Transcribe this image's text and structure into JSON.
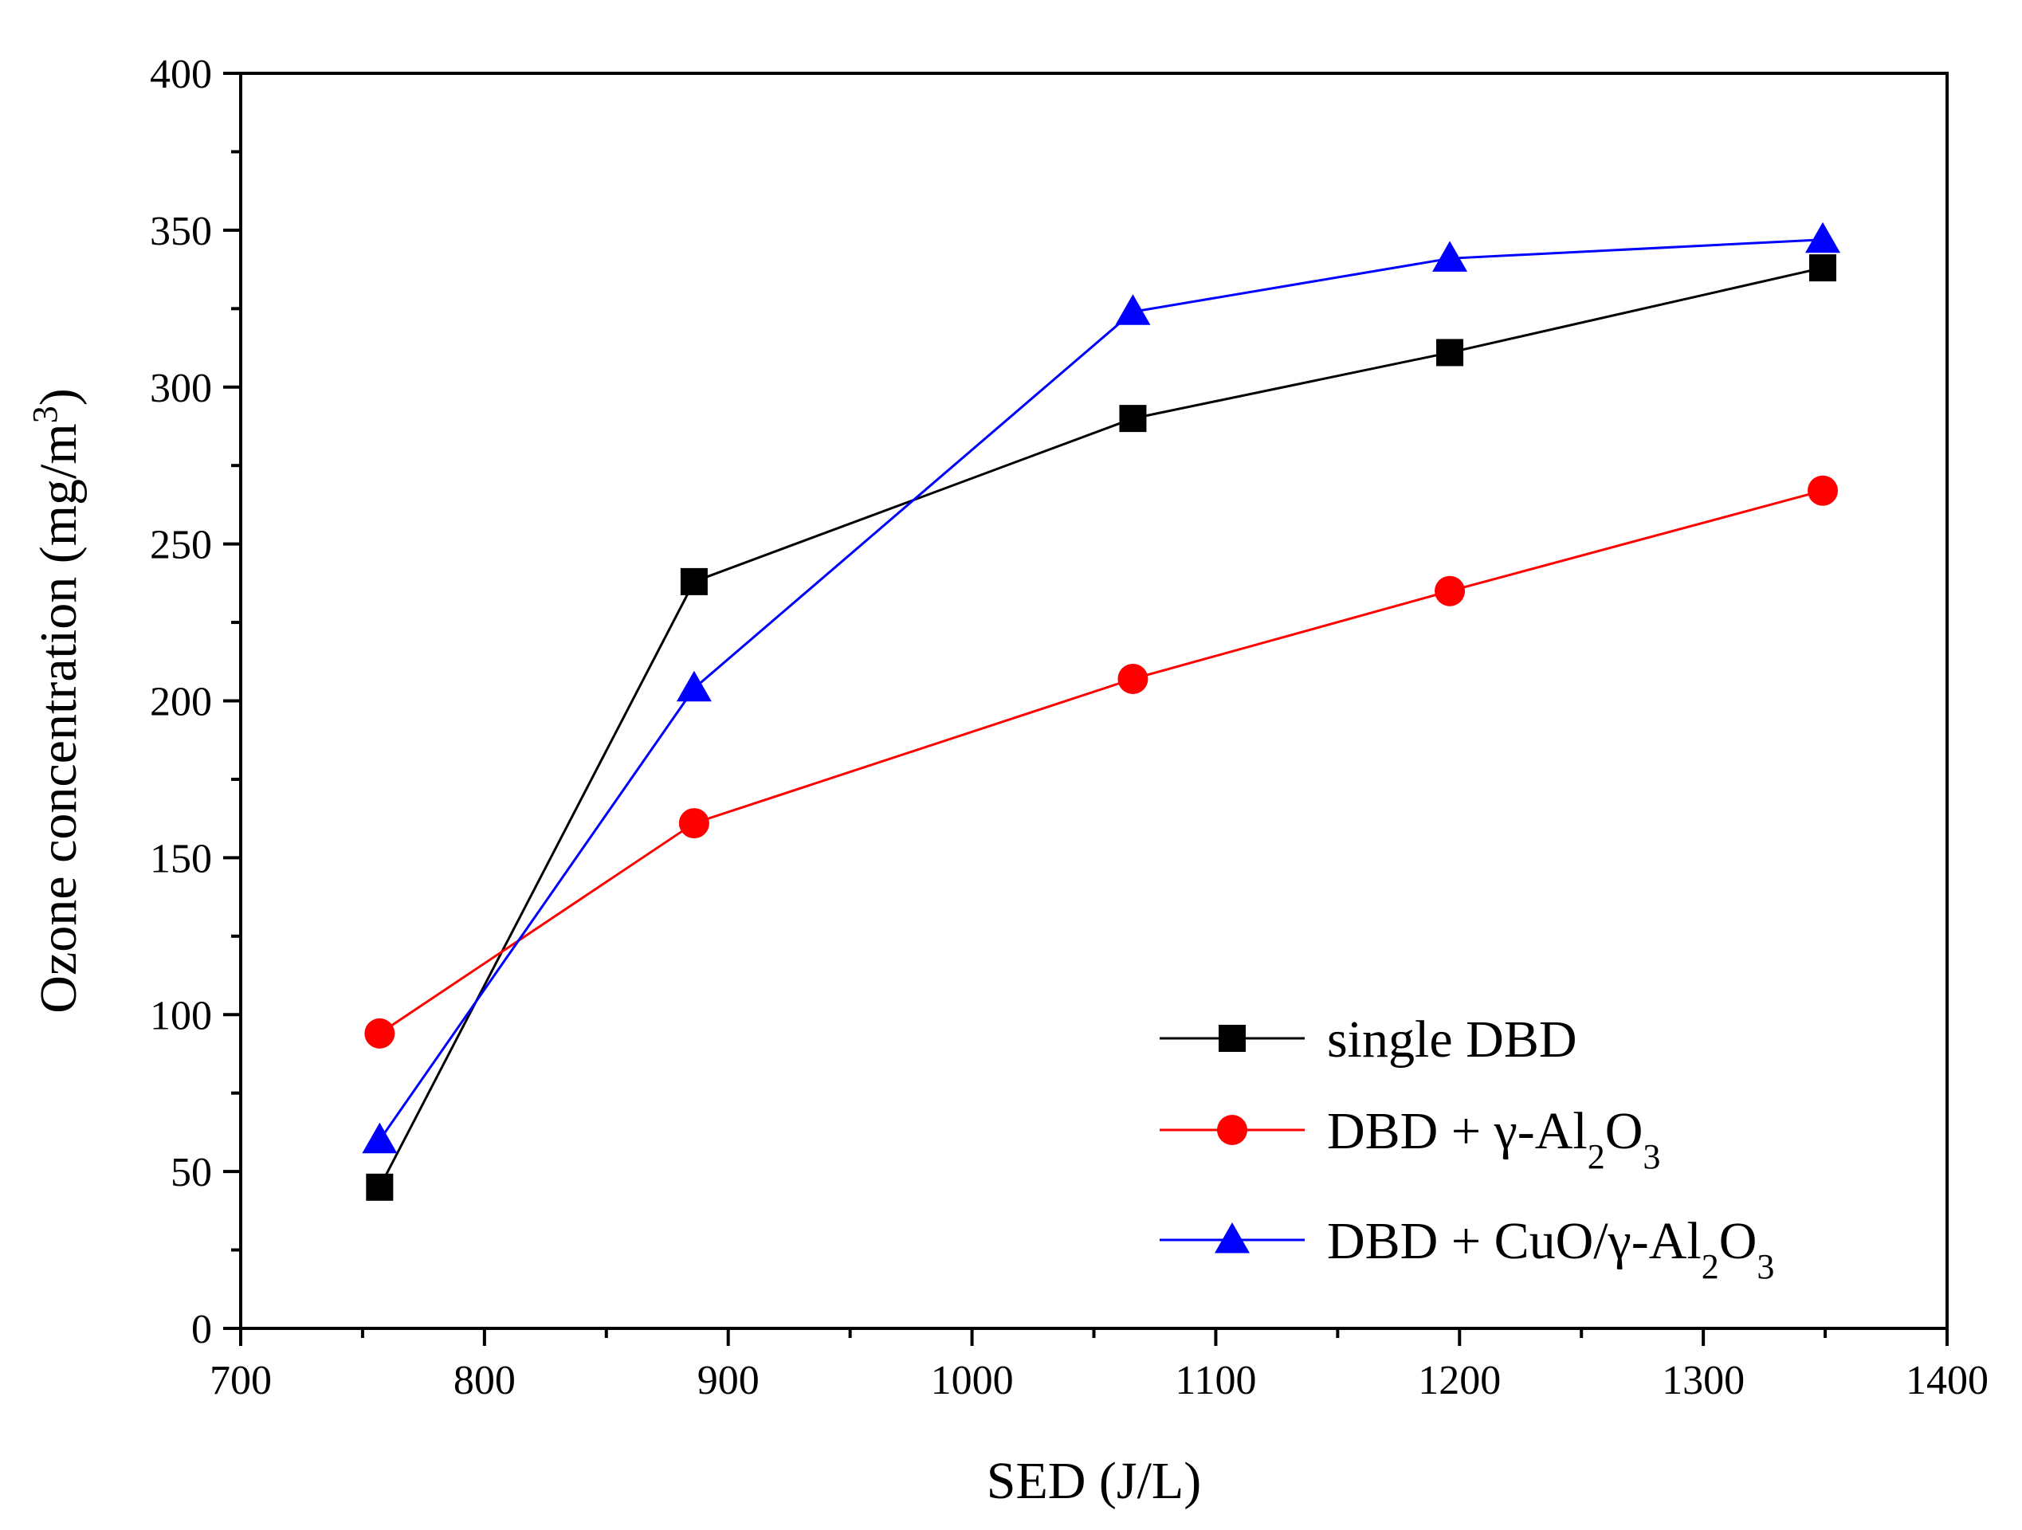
{
  "chart_data": {
    "type": "line",
    "title": "",
    "xlabel": "SED (J/L)",
    "ylabel_main": "Ozone concentration (mg/m",
    "ylabel_sup": "3",
    "ylabel_close": ")",
    "xlim": [
      700,
      1400
    ],
    "ylim": [
      0,
      400
    ],
    "xticks": [
      700,
      800,
      900,
      1000,
      1100,
      1200,
      1300,
      1400
    ],
    "yticks": [
      0,
      50,
      100,
      150,
      200,
      250,
      300,
      350,
      400
    ],
    "grid": false,
    "legend_position": "bottom-right",
    "series": [
      {
        "name": "single DBD",
        "legend_parts": [
          {
            "t": "single DBD",
            "sub": false
          }
        ],
        "color": "#000000",
        "marker": "square",
        "x": [
          757,
          886,
          1066,
          1196,
          1349
        ],
        "y": [
          45,
          238,
          290,
          311,
          338
        ]
      },
      {
        "name": "DBD + γ-Al2O3",
        "legend_parts": [
          {
            "t": "DBD + γ-Al",
            "sub": false
          },
          {
            "t": "2",
            "sub": true
          },
          {
            "t": "O",
            "sub": false
          },
          {
            "t": "3",
            "sub": true
          }
        ],
        "color": "#ff0000",
        "marker": "circle",
        "x": [
          757,
          886,
          1066,
          1196,
          1349
        ],
        "y": [
          94,
          161,
          207,
          235,
          267
        ]
      },
      {
        "name": "DBD + CuO/γ-Al2O3",
        "legend_parts": [
          {
            "t": "DBD + CuO/γ-Al",
            "sub": false
          },
          {
            "t": "2",
            "sub": true
          },
          {
            "t": "O",
            "sub": false
          },
          {
            "t": "3",
            "sub": true
          }
        ],
        "color": "#0000ff",
        "marker": "triangle",
        "x": [
          757,
          886,
          1066,
          1196,
          1349
        ],
        "y": [
          60,
          204,
          324,
          341,
          347
        ]
      }
    ]
  }
}
